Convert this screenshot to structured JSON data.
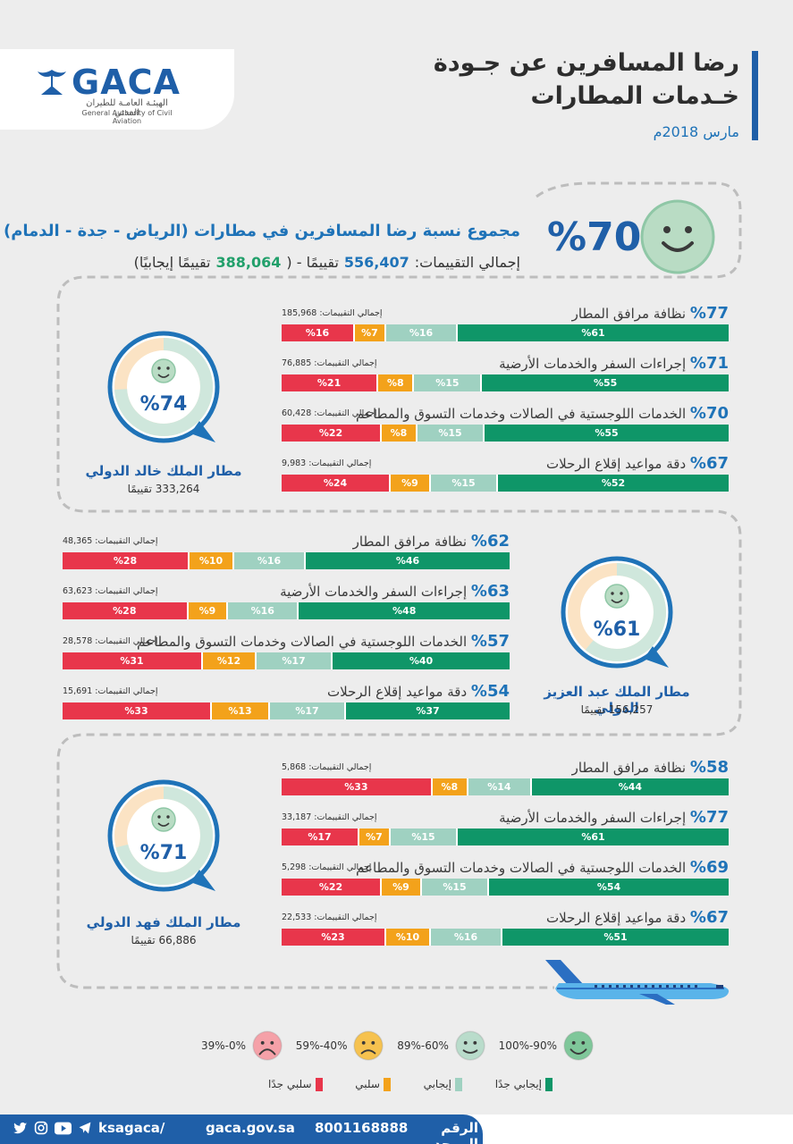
{
  "header": {
    "logo_text": "GACA",
    "logo_ar": "الهيئـة العامـة للطيران المدني",
    "logo_en": "General Authority of Civil Aviation",
    "title_line1": "رضا المسافرين عن جـودة",
    "title_line2": "خـدمات المطارات",
    "date": "مارس 2018م"
  },
  "summary": {
    "label": "مجموع نسبة رضا المسافرين في مطارات (الرياض - جدة - الدمام)",
    "total_prefix": "إجمالي التقييمات:",
    "total_value": "556,407",
    "total_mid": "تقييمًا - (",
    "positive_value": "388,064",
    "positive_suffix": "تقييمًا إيجابيًا)",
    "percent": "%70",
    "percent_value": 70
  },
  "airports": [
    {
      "name": "مطار الملك خالد الدولي",
      "count": "333,264 تقييمًا",
      "percent": "%74",
      "percent_value": 74,
      "rows": [
        {
          "pct": "%77",
          "label": "نظافة مرافق المطار",
          "total": "إجمالي التقييمات: 185,968",
          "segs": [
            61,
            16,
            7,
            16
          ]
        },
        {
          "pct": "%71",
          "label": "إجراءات السفر والخدمات الأرضية",
          "total": "إجمالي التقييمات: 76,885",
          "segs": [
            55,
            15,
            8,
            21
          ]
        },
        {
          "pct": "%70",
          "label": "الخدمات اللوجستية في الصالات وخدمات التسوق والمطاعم",
          "total": "إجمالي التقييمات: 60,428",
          "segs": [
            55,
            15,
            8,
            22
          ]
        },
        {
          "pct": "%67",
          "label": "دقة مواعيد إقلاع الرحلات",
          "total": "إجمالي التقييمات: 9,983",
          "segs": [
            52,
            15,
            9,
            24
          ]
        }
      ]
    },
    {
      "name": "مطار الملك عبد العزيز الدولي",
      "count": "156,257 تقييمًا",
      "percent": "%61",
      "percent_value": 61,
      "rows": [
        {
          "pct": "%62",
          "label": "نظافة مرافق المطار",
          "total": "إجمالي التقييمات: 48,365",
          "segs": [
            46,
            16,
            10,
            28
          ]
        },
        {
          "pct": "%63",
          "label": "إجراءات السفر والخدمات الأرضية",
          "total": "إجمالي التقييمات: 63,623",
          "segs": [
            48,
            16,
            9,
            28
          ]
        },
        {
          "pct": "%57",
          "label": "الخدمات اللوجستية في الصالات وخدمات التسوق والمطاعم",
          "total": "إجمالي التقييمات: 28,578",
          "segs": [
            40,
            17,
            12,
            31
          ]
        },
        {
          "pct": "%54",
          "label": "دقة مواعيد إقلاع الرحلات",
          "total": "إجمالي التقييمات: 15,691",
          "segs": [
            37,
            17,
            13,
            33
          ]
        }
      ]
    },
    {
      "name": "مطار الملك فهد الدولي",
      "count": "66,886 تقييمًا",
      "percent": "%71",
      "percent_value": 71,
      "rows": [
        {
          "pct": "%58",
          "label": "نظافة مرافق المطار",
          "total": "إجمالي التقييمات: 5,868",
          "segs": [
            44,
            14,
            8,
            33
          ]
        },
        {
          "pct": "%77",
          "label": "إجراءات السفر والخدمات الأرضية",
          "total": "إجمالي التقييمات: 33,187",
          "segs": [
            61,
            15,
            7,
            17
          ]
        },
        {
          "pct": "%69",
          "label": "الخدمات اللوجستية في الصالات وخدمات التسوق والمطاعم",
          "total": "إجمالي التقييمات: 5,298",
          "segs": [
            54,
            15,
            9,
            22
          ]
        },
        {
          "pct": "%67",
          "label": "دقة مواعيد إقلاع الرحلات",
          "total": "إجمالي التقييمات: 22,533",
          "segs": [
            51,
            16,
            10,
            23
          ]
        }
      ]
    }
  ],
  "legend": {
    "faces": [
      {
        "range": "100%-90%",
        "color": "#7fc79a",
        "icon": "very-happy-face-icon"
      },
      {
        "range": "89%-60%",
        "color": "#b9dccb",
        "icon": "happy-face-icon"
      },
      {
        "range": "59%-40%",
        "color": "#f6c24f",
        "icon": "sad-face-icon"
      },
      {
        "range": "39%-0%",
        "color": "#f5a1a8",
        "icon": "very-sad-face-icon"
      }
    ],
    "categories": [
      {
        "label": "إيجابي جدًا",
        "color": "#0f9668"
      },
      {
        "label": "إيجابي",
        "color": "#9fd1c1"
      },
      {
        "label": "سلبي",
        "color": "#f3a21b"
      },
      {
        "label": "سلبي جدًا",
        "color": "#e8364b"
      }
    ]
  },
  "footer": {
    "handle": "ksagaca/",
    "website": "gaca.gov.sa",
    "unified_label": "الرقم الموحد",
    "unified_number": "8001168888"
  },
  "colors": {
    "very_positive": "#0f9668",
    "positive": "#9fd1c1",
    "negative": "#f3a21b",
    "very_negative": "#e8364b",
    "brand_blue": "#1f5fa8"
  }
}
